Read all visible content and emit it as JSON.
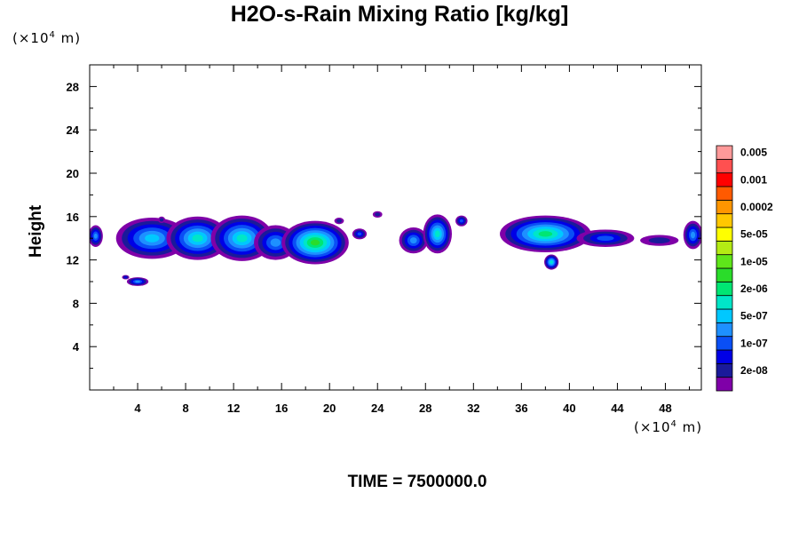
{
  "chart_data": {
    "type": "heatmap",
    "title": "H2O-s-Rain Mixing Ratio [kg/kg]",
    "ylabel": "Height",
    "x_unit": {
      "prefix": "(×10",
      "exp": "4",
      "suffix": " m)"
    },
    "y_unit": {
      "prefix": "(×10",
      "exp": "4",
      "suffix": " m)"
    },
    "xlim": [
      0,
      51
    ],
    "ylim": [
      0,
      30
    ],
    "x_ticks": [
      4,
      8,
      12,
      16,
      20,
      24,
      28,
      32,
      36,
      40,
      44,
      48
    ],
    "y_ticks": [
      4,
      8,
      12,
      16,
      20,
      24,
      28
    ],
    "colorbar": {
      "colors": [
        "#7f00a8",
        "#1a1a9a",
        "#0000e6",
        "#0a4ff5",
        "#1e90ff",
        "#00c8ff",
        "#00e6c8",
        "#00e673",
        "#2adc2a",
        "#5fe61a",
        "#b4eb14",
        "#ffff00",
        "#ffc800",
        "#ff9600",
        "#ff5a00",
        "#ff0000",
        "#ff5050",
        "#ff9999"
      ],
      "labels": [
        "2e-08",
        "1e-07",
        "5e-07",
        "2e-06",
        "1e-05",
        "5e-05",
        "0.0002",
        "0.001",
        "0.005"
      ]
    },
    "features": [
      {
        "x": 0.5,
        "y": 14.2,
        "rx": 0.6,
        "ry": 1.0,
        "level": 4
      },
      {
        "x": 5.2,
        "y": 14.0,
        "rx": 3.0,
        "ry": 1.9,
        "level": 5
      },
      {
        "x": 9.0,
        "y": 14.0,
        "rx": 2.6,
        "ry": 2.0,
        "level": 6
      },
      {
        "x": 12.7,
        "y": 14.0,
        "rx": 2.6,
        "ry": 2.1,
        "level": 6
      },
      {
        "x": 15.5,
        "y": 13.6,
        "rx": 1.8,
        "ry": 1.6,
        "level": 4
      },
      {
        "x": 18.8,
        "y": 13.6,
        "rx": 2.8,
        "ry": 2.0,
        "level": 8
      },
      {
        "x": 22.5,
        "y": 14.4,
        "rx": 0.6,
        "ry": 0.5,
        "level": 3
      },
      {
        "x": 27.0,
        "y": 13.8,
        "rx": 1.2,
        "ry": 1.2,
        "level": 4
      },
      {
        "x": 29.0,
        "y": 14.4,
        "rx": 1.2,
        "ry": 1.8,
        "level": 6
      },
      {
        "x": 31.0,
        "y": 15.6,
        "rx": 0.5,
        "ry": 0.5,
        "level": 3
      },
      {
        "x": 38.0,
        "y": 14.4,
        "rx": 3.8,
        "ry": 1.7,
        "level": 7
      },
      {
        "x": 43.0,
        "y": 14.0,
        "rx": 2.4,
        "ry": 0.8,
        "level": 3
      },
      {
        "x": 47.5,
        "y": 13.8,
        "rx": 1.6,
        "ry": 0.5,
        "level": 1
      },
      {
        "x": 50.3,
        "y": 14.3,
        "rx": 0.8,
        "ry": 1.3,
        "level": 4
      },
      {
        "x": 38.5,
        "y": 11.8,
        "rx": 0.6,
        "ry": 0.7,
        "level": 6
      },
      {
        "x": 4.0,
        "y": 10.0,
        "rx": 0.9,
        "ry": 0.4,
        "level": 4
      },
      {
        "x": 3.0,
        "y": 10.4,
        "rx": 0.3,
        "ry": 0.2,
        "level": 2
      },
      {
        "x": 6.0,
        "y": 15.7,
        "rx": 0.3,
        "ry": 0.3,
        "level": 1
      },
      {
        "x": 24.0,
        "y": 16.2,
        "rx": 0.4,
        "ry": 0.3,
        "level": 1
      },
      {
        "x": 20.8,
        "y": 15.6,
        "rx": 0.4,
        "ry": 0.3,
        "level": 1
      }
    ],
    "time_label": "TIME = 7500000.0"
  }
}
